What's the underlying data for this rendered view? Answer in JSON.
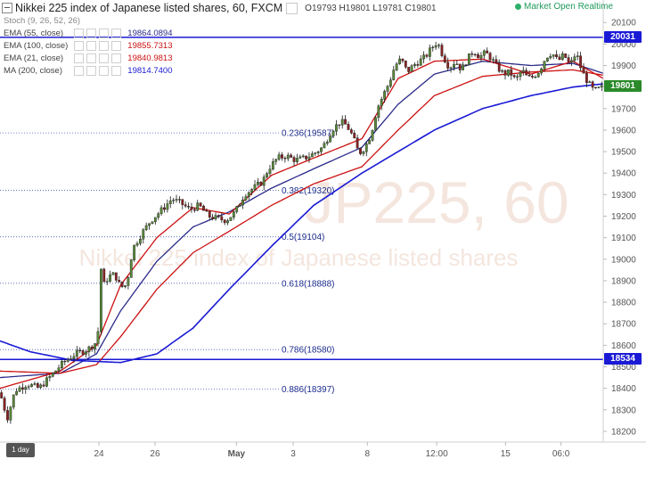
{
  "header": {
    "title": "Nikkei 225 index of Japanese listed shares, 60, FXCM",
    "o_label": "O",
    "o_value": "19793",
    "h_label": "H",
    "h_value": "19801",
    "l_label": "L",
    "l_value": "19781",
    "c_label": "C",
    "c_value": "19801"
  },
  "status": {
    "text": "Market Open Realtime"
  },
  "indicators": [
    {
      "name": "Stoch (9, 26, 52, 26)",
      "value": "",
      "color": "#555555"
    },
    {
      "name": "EMA (55, close)",
      "value": "19864.0894",
      "color": "#2a2a8a"
    },
    {
      "name": "EMA (100, close)",
      "value": "19855.7313",
      "color": "#cc1111"
    },
    {
      "name": "EMA (21, close)",
      "value": "19840.9813",
      "color": "#cc1111"
    },
    {
      "name": "MA (200, close)",
      "value": "19814.7400",
      "color": "#1a1ad6"
    }
  ],
  "watermark": {
    "line1": "JP225, 60",
    "line2": "Nikkei 225 index of Japanese listed shares"
  },
  "price_tags": [
    {
      "value": "20031",
      "color": "#1a1ad6"
    },
    {
      "value": "19801",
      "color": "#2a8a2a"
    },
    {
      "value": "18534",
      "color": "#1a1ad6"
    }
  ],
  "timeframe_badge": "1 day",
  "chart_data": {
    "type": "candlestick",
    "symbol": "JP225",
    "interval": "60",
    "y_ticks": [
      18200,
      18300,
      18400,
      18500,
      18600,
      18700,
      18800,
      18900,
      19000,
      19100,
      19200,
      19300,
      19400,
      19500,
      19600,
      19700,
      19800,
      19900,
      20000,
      20100
    ],
    "ylim": [
      18150,
      20130
    ],
    "x_ticks": [
      "24",
      "26",
      "May",
      "3",
      "8",
      "12:00",
      "15",
      "06:0"
    ],
    "x_tick_positions": [
      0.164,
      0.257,
      0.392,
      0.486,
      0.609,
      0.724,
      0.838,
      0.93
    ],
    "horizontal_lines": [
      {
        "value": 20031,
        "color": "#1a1ad6"
      },
      {
        "value": 18534,
        "color": "#1a1ad6"
      }
    ],
    "fibonacci": [
      {
        "ratio": "0.236",
        "value": 19587,
        "label": "0.236(19587)"
      },
      {
        "ratio": "0.382",
        "value": 19320,
        "label": "0.382(19320)"
      },
      {
        "ratio": "0.5",
        "value": 19104,
        "label": "0.5(19104)"
      },
      {
        "ratio": "0.618",
        "value": 18888,
        "label": "0.618(18888)"
      },
      {
        "ratio": "0.786",
        "value": 18580,
        "label": "0.786(18580)"
      },
      {
        "ratio": "0.886",
        "value": 18397,
        "label": "0.886(18397)"
      }
    ],
    "price_path": [
      [
        0.0,
        18380
      ],
      [
        0.012,
        18260
      ],
      [
        0.025,
        18390
      ],
      [
        0.045,
        18420
      ],
      [
        0.065,
        18400
      ],
      [
        0.085,
        18460
      ],
      [
        0.105,
        18520
      ],
      [
        0.125,
        18560
      ],
      [
        0.145,
        18580
      ],
      [
        0.162,
        18620
      ],
      [
        0.166,
        18980
      ],
      [
        0.172,
        18880
      ],
      [
        0.18,
        18920
      ],
      [
        0.19,
        18930
      ],
      [
        0.2,
        18870
      ],
      [
        0.21,
        18880
      ],
      [
        0.22,
        19050
      ],
      [
        0.235,
        19120
      ],
      [
        0.25,
        19180
      ],
      [
        0.265,
        19220
      ],
      [
        0.285,
        19280
      ],
      [
        0.3,
        19260
      ],
      [
        0.315,
        19230
      ],
      [
        0.33,
        19250
      ],
      [
        0.345,
        19200
      ],
      [
        0.36,
        19190
      ],
      [
        0.375,
        19180
      ],
      [
        0.39,
        19220
      ],
      [
        0.405,
        19300
      ],
      [
        0.42,
        19330
      ],
      [
        0.435,
        19360
      ],
      [
        0.445,
        19420
      ],
      [
        0.46,
        19470
      ],
      [
        0.475,
        19480
      ],
      [
        0.49,
        19460
      ],
      [
        0.505,
        19470
      ],
      [
        0.52,
        19490
      ],
      [
        0.535,
        19520
      ],
      [
        0.55,
        19600
      ],
      [
        0.565,
        19640
      ],
      [
        0.575,
        19620
      ],
      [
        0.585,
        19570
      ],
      [
        0.595,
        19490
      ],
      [
        0.605,
        19520
      ],
      [
        0.615,
        19580
      ],
      [
        0.625,
        19700
      ],
      [
        0.635,
        19760
      ],
      [
        0.645,
        19820
      ],
      [
        0.655,
        19900
      ],
      [
        0.665,
        19930
      ],
      [
        0.675,
        19870
      ],
      [
        0.685,
        19900
      ],
      [
        0.695,
        19920
      ],
      [
        0.705,
        19940
      ],
      [
        0.715,
        19980
      ],
      [
        0.725,
        20010
      ],
      [
        0.735,
        19940
      ],
      [
        0.745,
        19890
      ],
      [
        0.755,
        19920
      ],
      [
        0.765,
        19880
      ],
      [
        0.775,
        19930
      ],
      [
        0.785,
        19970
      ],
      [
        0.795,
        19940
      ],
      [
        0.805,
        19960
      ],
      [
        0.815,
        19930
      ],
      [
        0.825,
        19890
      ],
      [
        0.835,
        19860
      ],
      [
        0.845,
        19870
      ],
      [
        0.855,
        19830
      ],
      [
        0.865,
        19880
      ],
      [
        0.875,
        19840
      ],
      [
        0.885,
        19850
      ],
      [
        0.895,
        19880
      ],
      [
        0.905,
        19940
      ],
      [
        0.915,
        19960
      ],
      [
        0.925,
        19920
      ],
      [
        0.935,
        19950
      ],
      [
        0.945,
        19900
      ],
      [
        0.955,
        19960
      ],
      [
        0.965,
        19870
      ],
      [
        0.975,
        19820
      ],
      [
        0.985,
        19780
      ],
      [
        1.0,
        19801
      ]
    ],
    "series": [
      {
        "name": "EMA (55, close)",
        "color": "#2a2a8a",
        "path": [
          [
            0.0,
            18450
          ],
          [
            0.1,
            18470
          ],
          [
            0.16,
            18560
          ],
          [
            0.2,
            18760
          ],
          [
            0.26,
            18990
          ],
          [
            0.32,
            19150
          ],
          [
            0.38,
            19220
          ],
          [
            0.45,
            19330
          ],
          [
            0.52,
            19420
          ],
          [
            0.6,
            19520
          ],
          [
            0.66,
            19720
          ],
          [
            0.72,
            19860
          ],
          [
            0.8,
            19920
          ],
          [
            0.88,
            19900
          ],
          [
            0.95,
            19910
          ],
          [
            1.0,
            19864
          ]
        ]
      },
      {
        "name": "EMA (100, close)",
        "color": "#cc1111",
        "path": [
          [
            0.0,
            18480
          ],
          [
            0.1,
            18470
          ],
          [
            0.16,
            18510
          ],
          [
            0.2,
            18640
          ],
          [
            0.26,
            18860
          ],
          [
            0.32,
            19030
          ],
          [
            0.38,
            19130
          ],
          [
            0.45,
            19250
          ],
          [
            0.52,
            19350
          ],
          [
            0.6,
            19430
          ],
          [
            0.66,
            19600
          ],
          [
            0.72,
            19760
          ],
          [
            0.8,
            19850
          ],
          [
            0.88,
            19870
          ],
          [
            0.95,
            19880
          ],
          [
            1.0,
            19855
          ]
        ]
      },
      {
        "name": "EMA (21, close)",
        "color": "#cc1111",
        "path": [
          [
            0.0,
            18400
          ],
          [
            0.1,
            18480
          ],
          [
            0.16,
            18600
          ],
          [
            0.2,
            18880
          ],
          [
            0.26,
            19100
          ],
          [
            0.32,
            19240
          ],
          [
            0.38,
            19210
          ],
          [
            0.45,
            19390
          ],
          [
            0.52,
            19470
          ],
          [
            0.6,
            19560
          ],
          [
            0.66,
            19840
          ],
          [
            0.72,
            19920
          ],
          [
            0.8,
            19930
          ],
          [
            0.88,
            19860
          ],
          [
            0.95,
            19920
          ],
          [
            1.0,
            19840
          ]
        ]
      },
      {
        "name": "MA (200, close)",
        "color": "#1a1ad6",
        "path": [
          [
            0.0,
            18620
          ],
          [
            0.05,
            18570
          ],
          [
            0.12,
            18530
          ],
          [
            0.2,
            18520
          ],
          [
            0.26,
            18560
          ],
          [
            0.32,
            18680
          ],
          [
            0.38,
            18860
          ],
          [
            0.45,
            19060
          ],
          [
            0.52,
            19250
          ],
          [
            0.6,
            19400
          ],
          [
            0.66,
            19500
          ],
          [
            0.72,
            19600
          ],
          [
            0.8,
            19700
          ],
          [
            0.88,
            19760
          ],
          [
            0.95,
            19800
          ],
          [
            1.0,
            19815
          ]
        ]
      }
    ]
  }
}
